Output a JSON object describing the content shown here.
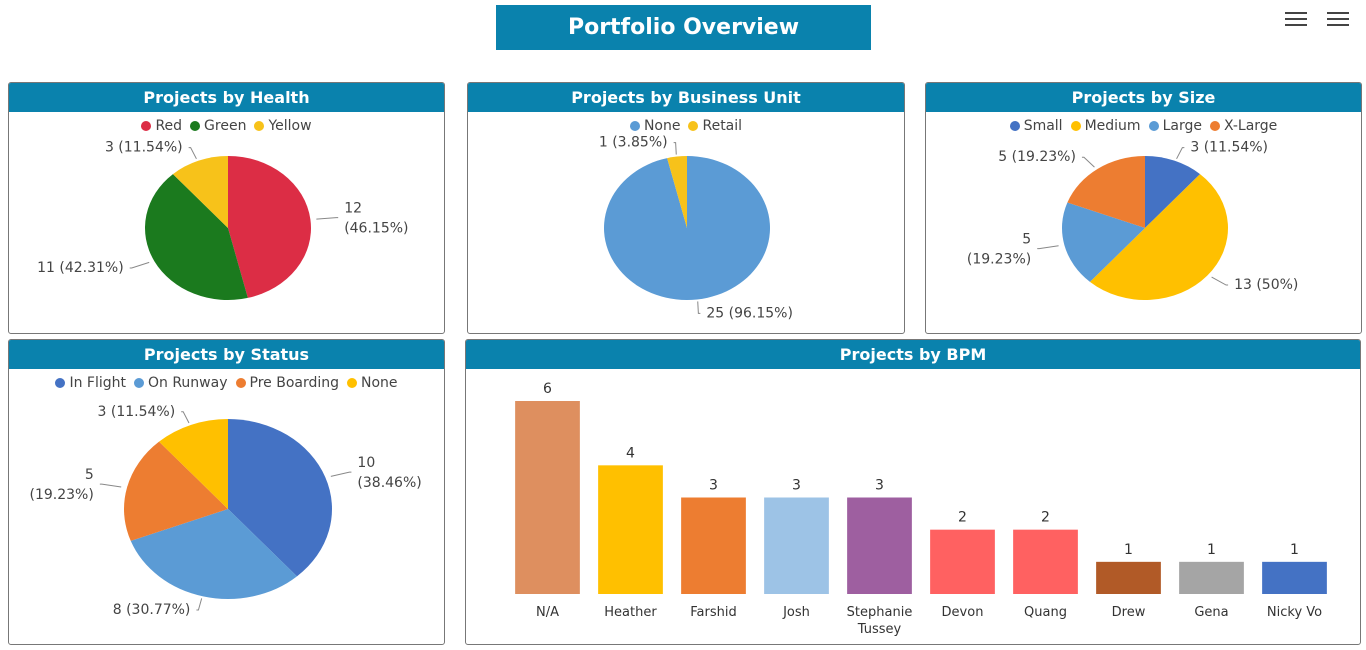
{
  "header": {
    "title": "Portfolio Overview"
  },
  "toolbar": {
    "menu_icons": [
      "menu-icon",
      "menu-icon"
    ]
  },
  "chart_data": [
    {
      "id": "health",
      "type": "pie",
      "title": "Projects by Health",
      "slices": [
        {
          "name": "Red",
          "value": 12,
          "label": [
            "12",
            "(46.15%)"
          ],
          "color": "#dc2d45"
        },
        {
          "name": "Green",
          "value": 11,
          "label": [
            "11 (42.31%)"
          ],
          "color": "#1b7a1e"
        },
        {
          "name": "Yellow",
          "value": 3,
          "label": [
            "3 (11.54%)"
          ],
          "color": "#f7c21a"
        }
      ]
    },
    {
      "id": "business-unit",
      "type": "pie",
      "title": "Projects by Business Unit",
      "slices": [
        {
          "name": "None",
          "value": 25,
          "label": [
            "25 (96.15%)"
          ],
          "color": "#5b9bd5"
        },
        {
          "name": "Retail",
          "value": 1,
          "label": [
            "1 (3.85%)"
          ],
          "color": "#f7c21a"
        }
      ]
    },
    {
      "id": "size",
      "type": "pie",
      "title": "Projects by Size",
      "slices": [
        {
          "name": "Small",
          "value": 3,
          "label": [
            "3 (11.54%)"
          ],
          "color": "#4472c4"
        },
        {
          "name": "Medium",
          "value": 13,
          "label": [
            "13 (50%)"
          ],
          "color": "#ffc000"
        },
        {
          "name": "Large",
          "value": 5,
          "label": [
            "5",
            "(19.23%)"
          ],
          "color": "#5b9bd5"
        },
        {
          "name": "X-Large",
          "value": 5,
          "label": [
            "5 (19.23%)"
          ],
          "color": "#ed7d31"
        }
      ]
    },
    {
      "id": "status",
      "type": "pie",
      "title": "Projects by Status",
      "slices": [
        {
          "name": "In Flight",
          "value": 10,
          "label": [
            "10",
            "(38.46%)"
          ],
          "color": "#4472c4"
        },
        {
          "name": "On Runway",
          "value": 8,
          "label": [
            "8 (30.77%)"
          ],
          "color": "#5b9bd5"
        },
        {
          "name": "Pre Boarding",
          "value": 5,
          "label": [
            "5",
            "(19.23%)"
          ],
          "color": "#ed7d31"
        },
        {
          "name": "None",
          "value": 3,
          "label": [
            "3 (11.54%)"
          ],
          "color": "#ffc000"
        }
      ]
    },
    {
      "id": "bpm",
      "type": "bar",
      "title": "Projects by BPM",
      "categories": [
        "N/A",
        "Heather",
        "Farshid",
        "Josh",
        "Stephanie Tussey",
        "Devon",
        "Quang",
        "Drew",
        "Gena",
        "Nicky Vo"
      ],
      "category_lines": [
        [
          "N/A"
        ],
        [
          "Heather"
        ],
        [
          "Farshid"
        ],
        [
          "Josh"
        ],
        [
          "Stephanie",
          "Tussey"
        ],
        [
          "Devon"
        ],
        [
          "Quang"
        ],
        [
          "Drew"
        ],
        [
          "Gena"
        ],
        [
          "Nicky Vo"
        ]
      ],
      "values": [
        6,
        4,
        3,
        3,
        3,
        2,
        2,
        1,
        1,
        1
      ],
      "colors": [
        "#de8f5f",
        "#ffc000",
        "#ed7d31",
        "#9dc3e6",
        "#9e5fa0",
        "#ff6161",
        "#ff6161",
        "#b15a27",
        "#a5a5a5",
        "#4472c4"
      ],
      "ylim": [
        0,
        6
      ]
    }
  ]
}
